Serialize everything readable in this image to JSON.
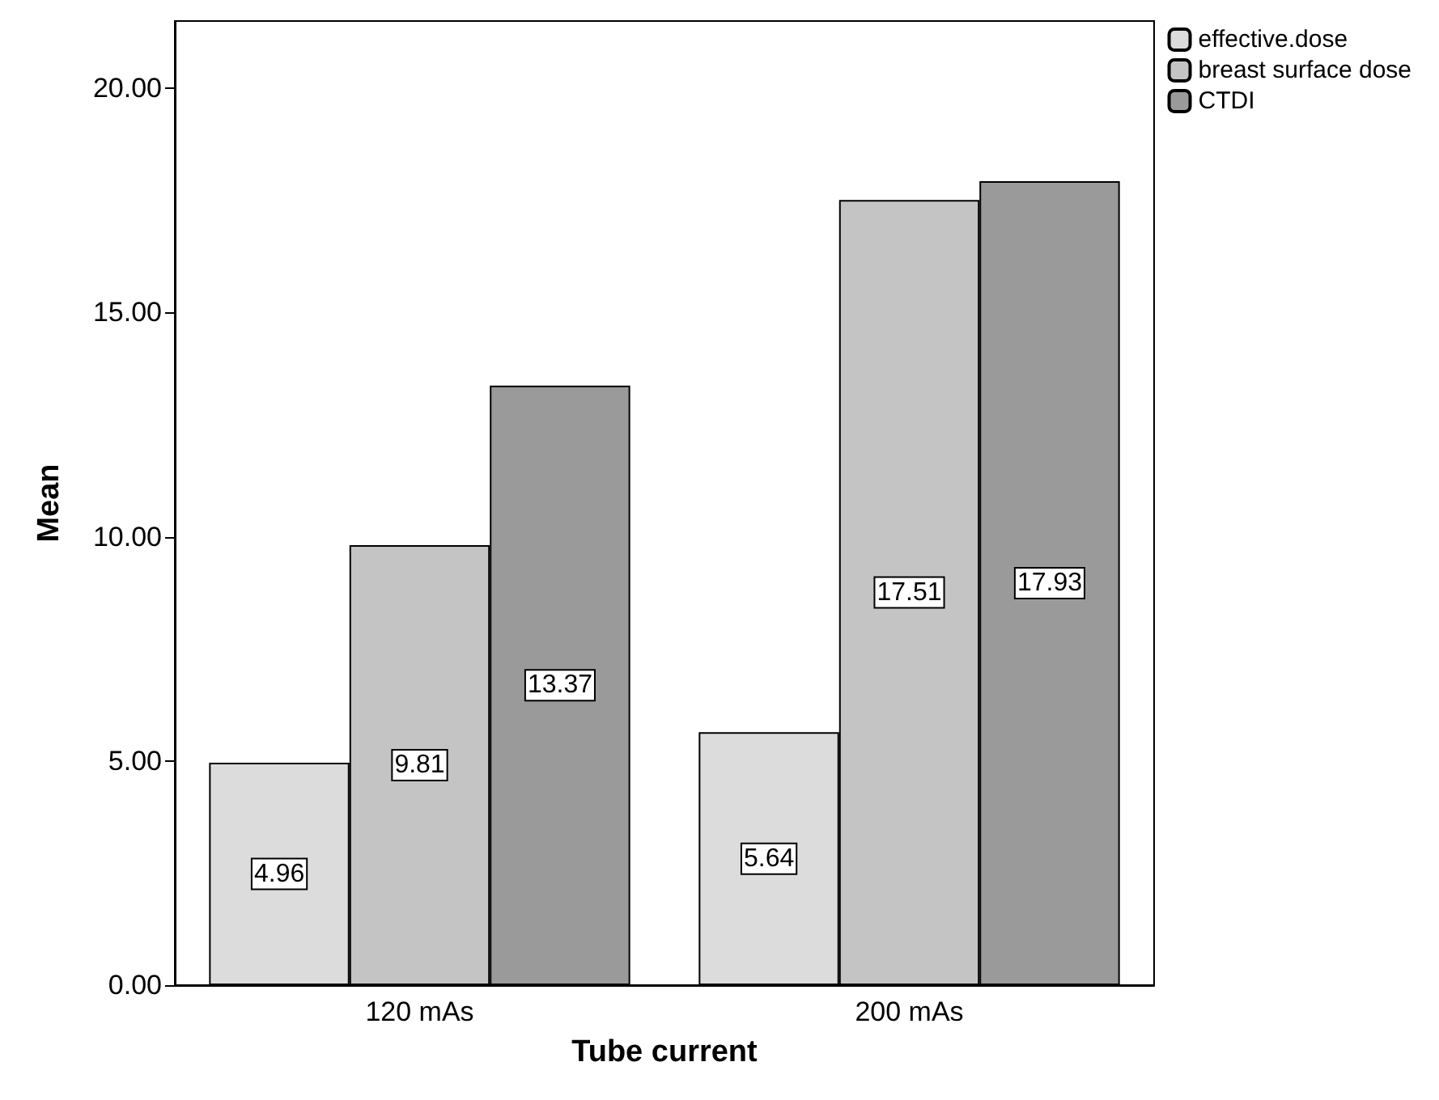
{
  "chart_data": {
    "type": "bar",
    "xlabel": "Tube current",
    "ylabel": "Mean",
    "categories": [
      "120 mAs",
      "200 mAs"
    ],
    "series": [
      {
        "name": "effective.dose",
        "color": "#dcdcdc",
        "values": [
          4.96,
          5.64
        ]
      },
      {
        "name": "breast surface dose",
        "color": "#c4c4c4",
        "values": [
          9.81,
          17.51
        ]
      },
      {
        "name": "CTDI",
        "color": "#9a9a9a",
        "values": [
          13.37,
          17.93
        ]
      }
    ],
    "ylim": [
      0,
      21.5
    ],
    "yticks": [
      {
        "value": 0,
        "label": "0.00"
      },
      {
        "value": 5,
        "label": "5.00"
      },
      {
        "value": 10,
        "label": "10.00"
      },
      {
        "value": 15,
        "label": "15.00"
      },
      {
        "value": 20,
        "label": "20.00"
      }
    ],
    "data_labels": true,
    "grid": false,
    "legend": "top right"
  }
}
